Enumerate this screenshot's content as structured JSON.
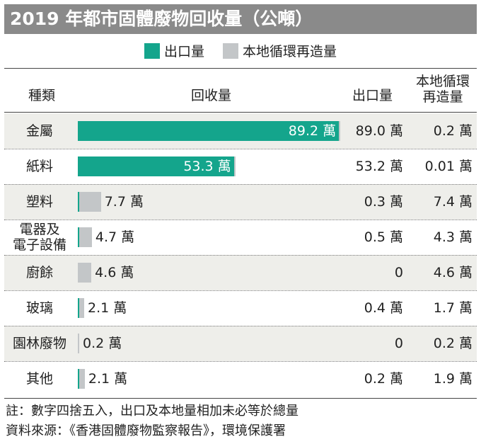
{
  "title": "2019 年都市固體廢物回收量（公噸）",
  "legend": {
    "export": {
      "label": "出口量",
      "color": "#14a58c"
    },
    "local": {
      "label": "本地循環再造量",
      "color": "#c3c6c8"
    }
  },
  "headers": {
    "type": "種類",
    "recovery": "回收量",
    "export": "出口量",
    "local_line1": "本地循環",
    "local_line2": "再造量"
  },
  "chart_data": {
    "type": "bar",
    "title": "2019 年都市固體廢物回收量（公噸）",
    "unit": "萬",
    "stacked": true,
    "categories": [
      "金屬",
      "紙料",
      "塑料",
      "電器及電子設備",
      "廚餘",
      "玻璃",
      "園林廢物",
      "其他"
    ],
    "series": [
      {
        "name": "出口量",
        "values": [
          89.0,
          53.2,
          0.3,
          0.5,
          0,
          0.4,
          0,
          0.2
        ],
        "color": "#14a58c"
      },
      {
        "name": "本地循環再造量",
        "values": [
          0.2,
          0.01,
          7.4,
          4.3,
          4.6,
          1.7,
          0.2,
          1.9
        ],
        "color": "#c3c6c8"
      }
    ],
    "totals": [
      89.2,
      53.3,
      7.7,
      4.7,
      4.6,
      2.1,
      0.2,
      2.1
    ],
    "xlim": [
      0,
      89.2
    ],
    "legend_position": "top"
  },
  "rows": [
    {
      "label": [
        "金屬"
      ],
      "total_text": "89.2 萬",
      "export_text": "89.0 萬",
      "local_text": "0.2 萬"
    },
    {
      "label": [
        "紙料"
      ],
      "total_text": "53.3 萬",
      "export_text": "53.2 萬",
      "local_text": "0.01 萬"
    },
    {
      "label": [
        "塑料"
      ],
      "total_text": "7.7 萬",
      "export_text": "0.3 萬",
      "local_text": "7.4 萬"
    },
    {
      "label": [
        "電器及",
        "電子設備"
      ],
      "total_text": "4.7 萬",
      "export_text": "0.5 萬",
      "local_text": "4.3 萬"
    },
    {
      "label": [
        "廚餘"
      ],
      "total_text": "4.6 萬",
      "export_text": "0",
      "local_text": "4.6 萬"
    },
    {
      "label": [
        "玻璃"
      ],
      "total_text": "2.1 萬",
      "export_text": "0.4 萬",
      "local_text": "1.7 萬"
    },
    {
      "label": [
        "園林廢物"
      ],
      "total_text": "0.2 萬",
      "export_text": "0",
      "local_text": "0.2 萬"
    },
    {
      "label": [
        "其他"
      ],
      "total_text": "2.1 萬",
      "export_text": "0.2 萬",
      "local_text": "1.9 萬"
    }
  ],
  "notes": [
    "註：數字四捨五入，出口及本地量相加未必等於總量",
    "資料來源：《香港固體廢物監察報告》，環境保護署"
  ]
}
